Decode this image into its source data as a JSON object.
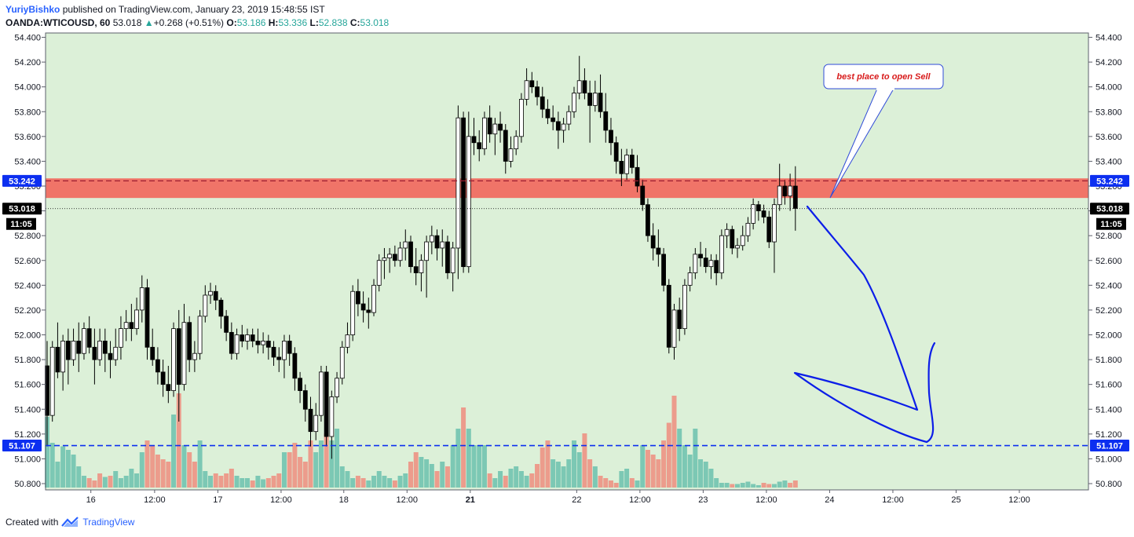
{
  "header": {
    "author": "YuriyBishko",
    "published": "published on TradingView.com, January 23, 2019 15:48:55 IST",
    "symbol": "OANDA:WTICOUSD, 60",
    "last": "53.018",
    "change": "+0.268 (+0.51%)",
    "o_label": "O:",
    "o_value": "53.186",
    "h_label": "H:",
    "h_value": "53.336",
    "l_label": "L:",
    "l_value": "52.838",
    "c_label": "C:",
    "c_value": "53.018"
  },
  "footer": {
    "created_with": "Created with",
    "brand": "TradingView"
  },
  "annotation": {
    "text": "best place to open Sell"
  },
  "colors": {
    "background": "#dcf0d8",
    "up": "#ffffff",
    "down": "#000000",
    "zone": "#f07468",
    "level": "#0c2ff0",
    "vol_up": "#7cc8b4",
    "vol_down": "#ec9c8c",
    "annotation": "#d81b1b"
  },
  "chart_data": {
    "type": "candlestick",
    "y_ticks": [
      "54.400",
      "54.200",
      "54.000",
      "53.800",
      "53.600",
      "53.400",
      "53.200",
      "53.000",
      "52.800",
      "52.600",
      "52.400",
      "52.200",
      "52.000",
      "51.800",
      "51.600",
      "51.400",
      "51.200",
      "51.000",
      "50.800"
    ],
    "y_tick_values": [
      54.4,
      54.2,
      54.0,
      53.8,
      53.6,
      53.4,
      53.2,
      53.0,
      52.8,
      52.6,
      52.4,
      52.2,
      52.0,
      51.8,
      51.6,
      51.4,
      51.2,
      51.0,
      50.8
    ],
    "ylim": [
      50.76,
      54.48
    ],
    "x_ticks": [
      {
        "label": "16",
        "bold": false
      },
      {
        "label": "12:00",
        "bold": false
      },
      {
        "label": "17",
        "bold": false
      },
      {
        "label": "12:00",
        "bold": false
      },
      {
        "label": "18",
        "bold": false
      },
      {
        "label": "12:00",
        "bold": false
      },
      {
        "label": "21",
        "bold": true
      },
      {
        "label": "22",
        "bold": false
      },
      {
        "label": "12:00",
        "bold": false
      },
      {
        "label": "23",
        "bold": false
      },
      {
        "label": "12:00",
        "bold": false
      },
      {
        "label": "24",
        "bold": false
      },
      {
        "label": "12:00",
        "bold": false
      },
      {
        "label": "25",
        "bold": false
      },
      {
        "label": "12:00",
        "bold": false
      }
    ],
    "x_tick_bars": [
      8.3,
      20.4,
      32.4,
      44.4,
      56.3,
      68.3,
      80.3,
      100.5,
      112.5,
      124.5,
      136.5,
      148.5,
      160.5,
      172.5,
      184.5
    ],
    "zone": {
      "low": 53.104,
      "high": 53.262
    },
    "resistance_level": {
      "value": 53.242,
      "label": "53.242"
    },
    "support_level": {
      "value": 51.107,
      "label": "51.107"
    },
    "last_price": {
      "value": 53.018,
      "label": "53.018",
      "countdown": "11:05"
    },
    "ohlc": [
      [
        51.75,
        51.95,
        51.1,
        51.35
      ],
      [
        51.35,
        51.95,
        51.3,
        51.9
      ],
      [
        51.9,
        52.1,
        51.65,
        51.7
      ],
      [
        51.7,
        52.0,
        51.55,
        51.95
      ],
      [
        51.95,
        52.05,
        51.6,
        51.8
      ],
      [
        51.8,
        52.05,
        51.75,
        51.95
      ],
      [
        51.95,
        52.1,
        51.7,
        51.85
      ],
      [
        51.85,
        52.1,
        51.8,
        52.05
      ],
      [
        52.05,
        52.15,
        51.85,
        51.9
      ],
      [
        51.9,
        52.05,
        51.6,
        51.8
      ],
      [
        51.8,
        52.05,
        51.75,
        51.95
      ],
      [
        51.95,
        52.05,
        51.7,
        51.85
      ],
      [
        51.85,
        51.95,
        51.65,
        51.8
      ],
      [
        51.8,
        52.05,
        51.75,
        51.9
      ],
      [
        51.9,
        52.15,
        51.8,
        52.05
      ],
      [
        52.05,
        52.2,
        51.95,
        52.1
      ],
      [
        52.1,
        52.25,
        51.95,
        52.05
      ],
      [
        52.05,
        52.3,
        52.0,
        52.2
      ],
      [
        52.2,
        52.48,
        52.1,
        52.38
      ],
      [
        52.38,
        52.45,
        51.8,
        51.9
      ],
      [
        51.9,
        52.05,
        51.75,
        51.8
      ],
      [
        51.8,
        51.9,
        51.6,
        51.7
      ],
      [
        51.7,
        51.8,
        51.5,
        51.6
      ],
      [
        51.6,
        51.75,
        51.45,
        51.55
      ],
      [
        51.55,
        52.1,
        51.5,
        52.05
      ],
      [
        52.05,
        52.2,
        51.3,
        51.6
      ],
      [
        51.6,
        52.25,
        51.55,
        52.1
      ],
      [
        52.1,
        52.15,
        51.7,
        51.8
      ],
      [
        51.8,
        51.95,
        51.7,
        51.85
      ],
      [
        51.85,
        52.2,
        51.8,
        52.15
      ],
      [
        52.15,
        52.4,
        52.1,
        52.32
      ],
      [
        52.32,
        52.42,
        52.25,
        52.35
      ],
      [
        52.35,
        52.4,
        52.2,
        52.28
      ],
      [
        52.28,
        52.3,
        52.05,
        52.15
      ],
      [
        52.15,
        52.2,
        51.95,
        52.02
      ],
      [
        52.02,
        52.1,
        51.8,
        51.85
      ],
      [
        51.85,
        52.05,
        51.8,
        52.0
      ],
      [
        52.0,
        52.08,
        51.9,
        51.95
      ],
      [
        51.95,
        52.05,
        51.88,
        52.0
      ],
      [
        52.0,
        52.05,
        51.9,
        51.95
      ],
      [
        51.95,
        52.05,
        51.85,
        51.92
      ],
      [
        51.92,
        52.02,
        51.85,
        51.95
      ],
      [
        51.95,
        52.0,
        51.8,
        51.9
      ],
      [
        51.9,
        51.95,
        51.75,
        51.82
      ],
      [
        51.82,
        51.9,
        51.7,
        51.8
      ],
      [
        51.8,
        52.0,
        51.65,
        51.95
      ],
      [
        51.95,
        52.0,
        51.75,
        51.85
      ],
      [
        51.85,
        51.9,
        51.55,
        51.65
      ],
      [
        51.65,
        51.7,
        51.45,
        51.55
      ],
      [
        51.55,
        51.6,
        51.3,
        51.4
      ],
      [
        51.4,
        51.5,
        51.1,
        51.22
      ],
      [
        51.22,
        51.45,
        51.15,
        51.35
      ],
      [
        51.35,
        51.75,
        51.3,
        51.7
      ],
      [
        51.7,
        51.75,
        51.1,
        51.18
      ],
      [
        51.18,
        51.55,
        51.0,
        51.5
      ],
      [
        51.5,
        51.7,
        51.45,
        51.65
      ],
      [
        51.65,
        51.95,
        51.6,
        51.9
      ],
      [
        51.9,
        52.1,
        51.85,
        52.0
      ],
      [
        52.0,
        52.4,
        51.95,
        52.35
      ],
      [
        52.35,
        52.45,
        52.15,
        52.25
      ],
      [
        52.25,
        52.35,
        52.1,
        52.2
      ],
      [
        52.2,
        52.3,
        52.05,
        52.18
      ],
      [
        52.18,
        52.45,
        52.15,
        52.4
      ],
      [
        52.4,
        52.65,
        52.35,
        52.6
      ],
      [
        52.6,
        52.7,
        52.45,
        52.62
      ],
      [
        52.62,
        52.7,
        52.5,
        52.65
      ],
      [
        52.65,
        52.72,
        52.55,
        52.6
      ],
      [
        52.6,
        52.75,
        52.55,
        52.7
      ],
      [
        52.7,
        52.85,
        52.6,
        52.75
      ],
      [
        52.75,
        52.8,
        52.5,
        52.55
      ],
      [
        52.55,
        52.7,
        52.4,
        52.5
      ],
      [
        52.5,
        52.65,
        52.35,
        52.6
      ],
      [
        52.6,
        52.8,
        52.3,
        52.75
      ],
      [
        52.75,
        52.88,
        52.65,
        52.8
      ],
      [
        52.8,
        52.85,
        52.6,
        52.7
      ],
      [
        52.7,
        52.85,
        52.55,
        52.75
      ],
      [
        52.75,
        52.8,
        52.45,
        52.5
      ],
      [
        52.5,
        52.75,
        52.35,
        52.7
      ],
      [
        52.7,
        53.85,
        52.45,
        53.75
      ],
      [
        53.75,
        53.8,
        52.5,
        52.55
      ],
      [
        52.55,
        53.8,
        52.5,
        53.6
      ],
      [
        53.6,
        53.75,
        53.45,
        53.55
      ],
      [
        53.55,
        53.65,
        53.4,
        53.5
      ],
      [
        53.5,
        53.8,
        53.45,
        53.75
      ],
      [
        53.75,
        53.85,
        53.55,
        53.62
      ],
      [
        53.62,
        53.75,
        53.45,
        53.7
      ],
      [
        53.7,
        53.8,
        53.55,
        53.65
      ],
      [
        53.65,
        53.7,
        53.3,
        53.4
      ],
      [
        53.4,
        53.6,
        53.35,
        53.5
      ],
      [
        53.5,
        53.65,
        53.45,
        53.6
      ],
      [
        53.6,
        53.95,
        53.55,
        53.9
      ],
      [
        53.9,
        54.15,
        53.85,
        54.05
      ],
      [
        54.05,
        54.12,
        53.95,
        54.0
      ],
      [
        54.0,
        54.05,
        53.85,
        53.92
      ],
      [
        53.92,
        54.0,
        53.75,
        53.82
      ],
      [
        53.82,
        53.9,
        53.7,
        53.75
      ],
      [
        53.75,
        53.85,
        53.65,
        53.72
      ],
      [
        53.72,
        53.8,
        53.5,
        53.65
      ],
      [
        53.65,
        53.75,
        53.55,
        53.7
      ],
      [
        53.7,
        53.85,
        53.65,
        53.8
      ],
      [
        53.8,
        54.0,
        53.75,
        53.95
      ],
      [
        53.95,
        54.25,
        53.9,
        54.05
      ],
      [
        54.05,
        54.15,
        53.9,
        53.95
      ],
      [
        53.95,
        54.05,
        53.55,
        53.85
      ],
      [
        53.85,
        54.05,
        53.8,
        53.95
      ],
      [
        53.95,
        54.1,
        53.75,
        53.8
      ],
      [
        53.8,
        53.95,
        53.55,
        53.65
      ],
      [
        53.65,
        53.75,
        53.45,
        53.55
      ],
      [
        53.55,
        53.6,
        53.3,
        53.4
      ],
      [
        53.4,
        53.5,
        53.2,
        53.3
      ],
      [
        53.3,
        53.5,
        53.25,
        53.45
      ],
      [
        53.45,
        53.5,
        53.3,
        53.35
      ],
      [
        53.35,
        53.45,
        53.15,
        53.2
      ],
      [
        53.2,
        53.25,
        53.0,
        53.05
      ],
      [
        53.05,
        53.1,
        52.75,
        52.8
      ],
      [
        52.8,
        52.9,
        52.6,
        52.7
      ],
      [
        52.7,
        52.85,
        52.55,
        52.65
      ],
      [
        52.65,
        52.7,
        52.35,
        52.4
      ],
      [
        52.4,
        52.45,
        51.85,
        51.9
      ],
      [
        51.9,
        52.25,
        51.8,
        52.2
      ],
      [
        52.2,
        52.3,
        51.95,
        52.05
      ],
      [
        52.05,
        52.45,
        52.0,
        52.4
      ],
      [
        52.4,
        52.55,
        52.35,
        52.5
      ],
      [
        52.5,
        52.7,
        52.45,
        52.65
      ],
      [
        52.65,
        52.75,
        52.55,
        52.62
      ],
      [
        52.62,
        52.7,
        52.5,
        52.55
      ],
      [
        52.55,
        52.65,
        52.45,
        52.6
      ],
      [
        52.6,
        52.65,
        52.4,
        52.5
      ],
      [
        52.5,
        52.85,
        52.45,
        52.8
      ],
      [
        52.8,
        52.9,
        52.7,
        52.85
      ],
      [
        52.85,
        52.88,
        52.65,
        52.7
      ],
      [
        52.7,
        52.78,
        52.62,
        52.72
      ],
      [
        52.72,
        52.88,
        52.68,
        52.8
      ],
      [
        52.8,
        52.95,
        52.75,
        52.9
      ],
      [
        52.9,
        53.1,
        52.85,
        53.05
      ],
      [
        53.05,
        53.08,
        52.92,
        53.0
      ],
      [
        53.0,
        53.05,
        52.9,
        52.95
      ],
      [
        52.95,
        53.0,
        52.7,
        52.75
      ],
      [
        52.75,
        53.1,
        52.5,
        53.05
      ],
      [
        53.05,
        53.38,
        53.0,
        53.2
      ],
      [
        53.2,
        53.25,
        53.05,
        53.12
      ],
      [
        53.12,
        53.3,
        53.0,
        53.2
      ],
      [
        53.2,
        53.36,
        52.84,
        53.02
      ]
    ],
    "volume": [
      [
        60,
        1
      ],
      [
        38,
        1
      ],
      [
        22,
        1
      ],
      [
        35,
        1
      ],
      [
        32,
        1
      ],
      [
        28,
        1
      ],
      [
        18,
        1
      ],
      [
        10,
        1
      ],
      [
        8,
        0
      ],
      [
        6,
        0
      ],
      [
        12,
        0
      ],
      [
        9,
        1
      ],
      [
        10,
        0
      ],
      [
        14,
        1
      ],
      [
        8,
        1
      ],
      [
        10,
        1
      ],
      [
        16,
        1
      ],
      [
        12,
        1
      ],
      [
        30,
        1
      ],
      [
        40,
        0
      ],
      [
        36,
        0
      ],
      [
        28,
        0
      ],
      [
        24,
        0
      ],
      [
        22,
        0
      ],
      [
        62,
        1
      ],
      [
        80,
        0
      ],
      [
        36,
        1
      ],
      [
        30,
        0
      ],
      [
        22,
        0
      ],
      [
        40,
        1
      ],
      [
        14,
        1
      ],
      [
        10,
        1
      ],
      [
        12,
        0
      ],
      [
        10,
        0
      ],
      [
        12,
        0
      ],
      [
        16,
        0
      ],
      [
        10,
        1
      ],
      [
        8,
        1
      ],
      [
        8,
        1
      ],
      [
        6,
        0
      ],
      [
        10,
        1
      ],
      [
        7,
        1
      ],
      [
        8,
        0
      ],
      [
        10,
        0
      ],
      [
        12,
        0
      ],
      [
        30,
        1
      ],
      [
        30,
        0
      ],
      [
        38,
        0
      ],
      [
        26,
        0
      ],
      [
        22,
        0
      ],
      [
        40,
        0
      ],
      [
        30,
        1
      ],
      [
        40,
        1
      ],
      [
        46,
        0
      ],
      [
        40,
        1
      ],
      [
        50,
        1
      ],
      [
        18,
        1
      ],
      [
        14,
        1
      ],
      [
        8,
        1
      ],
      [
        10,
        0
      ],
      [
        8,
        0
      ],
      [
        6,
        1
      ],
      [
        10,
        1
      ],
      [
        14,
        1
      ],
      [
        10,
        1
      ],
      [
        8,
        1
      ],
      [
        6,
        0
      ],
      [
        10,
        1
      ],
      [
        12,
        1
      ],
      [
        22,
        0
      ],
      [
        30,
        0
      ],
      [
        26,
        1
      ],
      [
        24,
        1
      ],
      [
        20,
        1
      ],
      [
        14,
        0
      ],
      [
        22,
        1
      ],
      [
        18,
        0
      ],
      [
        36,
        1
      ],
      [
        50,
        1
      ],
      [
        68,
        0
      ],
      [
        50,
        1
      ],
      [
        36,
        1
      ],
      [
        36,
        1
      ],
      [
        36,
        1
      ],
      [
        12,
        0
      ],
      [
        8,
        1
      ],
      [
        14,
        1
      ],
      [
        10,
        0
      ],
      [
        16,
        1
      ],
      [
        18,
        1
      ],
      [
        14,
        1
      ],
      [
        10,
        1
      ],
      [
        12,
        0
      ],
      [
        20,
        0
      ],
      [
        34,
        0
      ],
      [
        40,
        0
      ],
      [
        24,
        1
      ],
      [
        22,
        1
      ],
      [
        18,
        1
      ],
      [
        24,
        1
      ],
      [
        40,
        1
      ],
      [
        30,
        1
      ],
      [
        46,
        0
      ],
      [
        24,
        0
      ],
      [
        18,
        1
      ],
      [
        10,
        0
      ],
      [
        8,
        0
      ],
      [
        6,
        0
      ],
      [
        4,
        0
      ],
      [
        14,
        1
      ],
      [
        16,
        1
      ],
      [
        8,
        0
      ],
      [
        6,
        1
      ],
      [
        36,
        1
      ],
      [
        32,
        0
      ],
      [
        28,
        0
      ],
      [
        24,
        0
      ],
      [
        40,
        0
      ],
      [
        55,
        0
      ],
      [
        78,
        0
      ],
      [
        50,
        1
      ],
      [
        36,
        1
      ],
      [
        28,
        1
      ],
      [
        50,
        1
      ],
      [
        24,
        1
      ],
      [
        22,
        1
      ],
      [
        16,
        1
      ],
      [
        8,
        1
      ],
      [
        4,
        1
      ],
      [
        4,
        1
      ],
      [
        3,
        0
      ],
      [
        3,
        1
      ],
      [
        4,
        1
      ],
      [
        5,
        1
      ],
      [
        3,
        1
      ],
      [
        2,
        1
      ],
      [
        4,
        0
      ],
      [
        3,
        0
      ],
      [
        3,
        1
      ],
      [
        5,
        1
      ],
      [
        6,
        1
      ],
      [
        4,
        0
      ],
      [
        6,
        0
      ]
    ]
  }
}
